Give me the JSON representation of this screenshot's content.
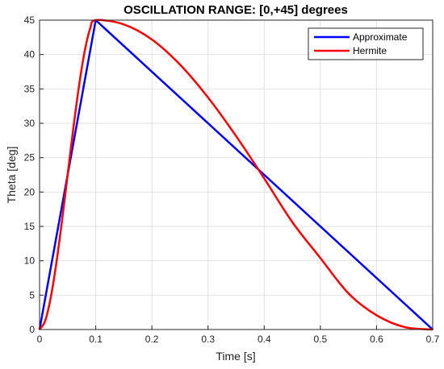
{
  "chart_data": {
    "type": "line",
    "title": "OSCILLATION RANGE: [0,+45] degrees",
    "xlabel": "Time [s]",
    "ylabel": "Theta [deg]",
    "xlim": [
      0,
      0.7
    ],
    "ylim": [
      0,
      45
    ],
    "xticks": [
      "0",
      "0.1",
      "0.2",
      "0.3",
      "0.4",
      "0.5",
      "0.6",
      "0.7"
    ],
    "yticks": [
      "0",
      "5",
      "10",
      "15",
      "20",
      "25",
      "30",
      "35",
      "40",
      "45"
    ],
    "grid": true,
    "legend_position": "top-right",
    "series": [
      {
        "name": "Approximate",
        "color": "#0000ff",
        "x": [
          0,
          0.1,
          0.7
        ],
        "y": [
          0,
          45,
          0
        ]
      },
      {
        "name": "Hermite",
        "color": "#ff0000",
        "x": [
          0,
          0.01,
          0.02,
          0.03,
          0.04,
          0.05,
          0.06,
          0.07,
          0.08,
          0.09,
          0.1,
          0.15,
          0.2,
          0.25,
          0.3,
          0.35,
          0.4,
          0.45,
          0.5,
          0.55,
          0.6,
          0.65,
          0.7
        ],
        "y": [
          0,
          1.26,
          4.68,
          9.72,
          15.84,
          22.5,
          29.16,
          35.28,
          40.32,
          43.74,
          45,
          44.38,
          42.19,
          38.54,
          33.75,
          28.13,
          21.98,
          15.63,
          10.4,
          5.26,
          2.08,
          0.35,
          0
        ]
      }
    ]
  }
}
